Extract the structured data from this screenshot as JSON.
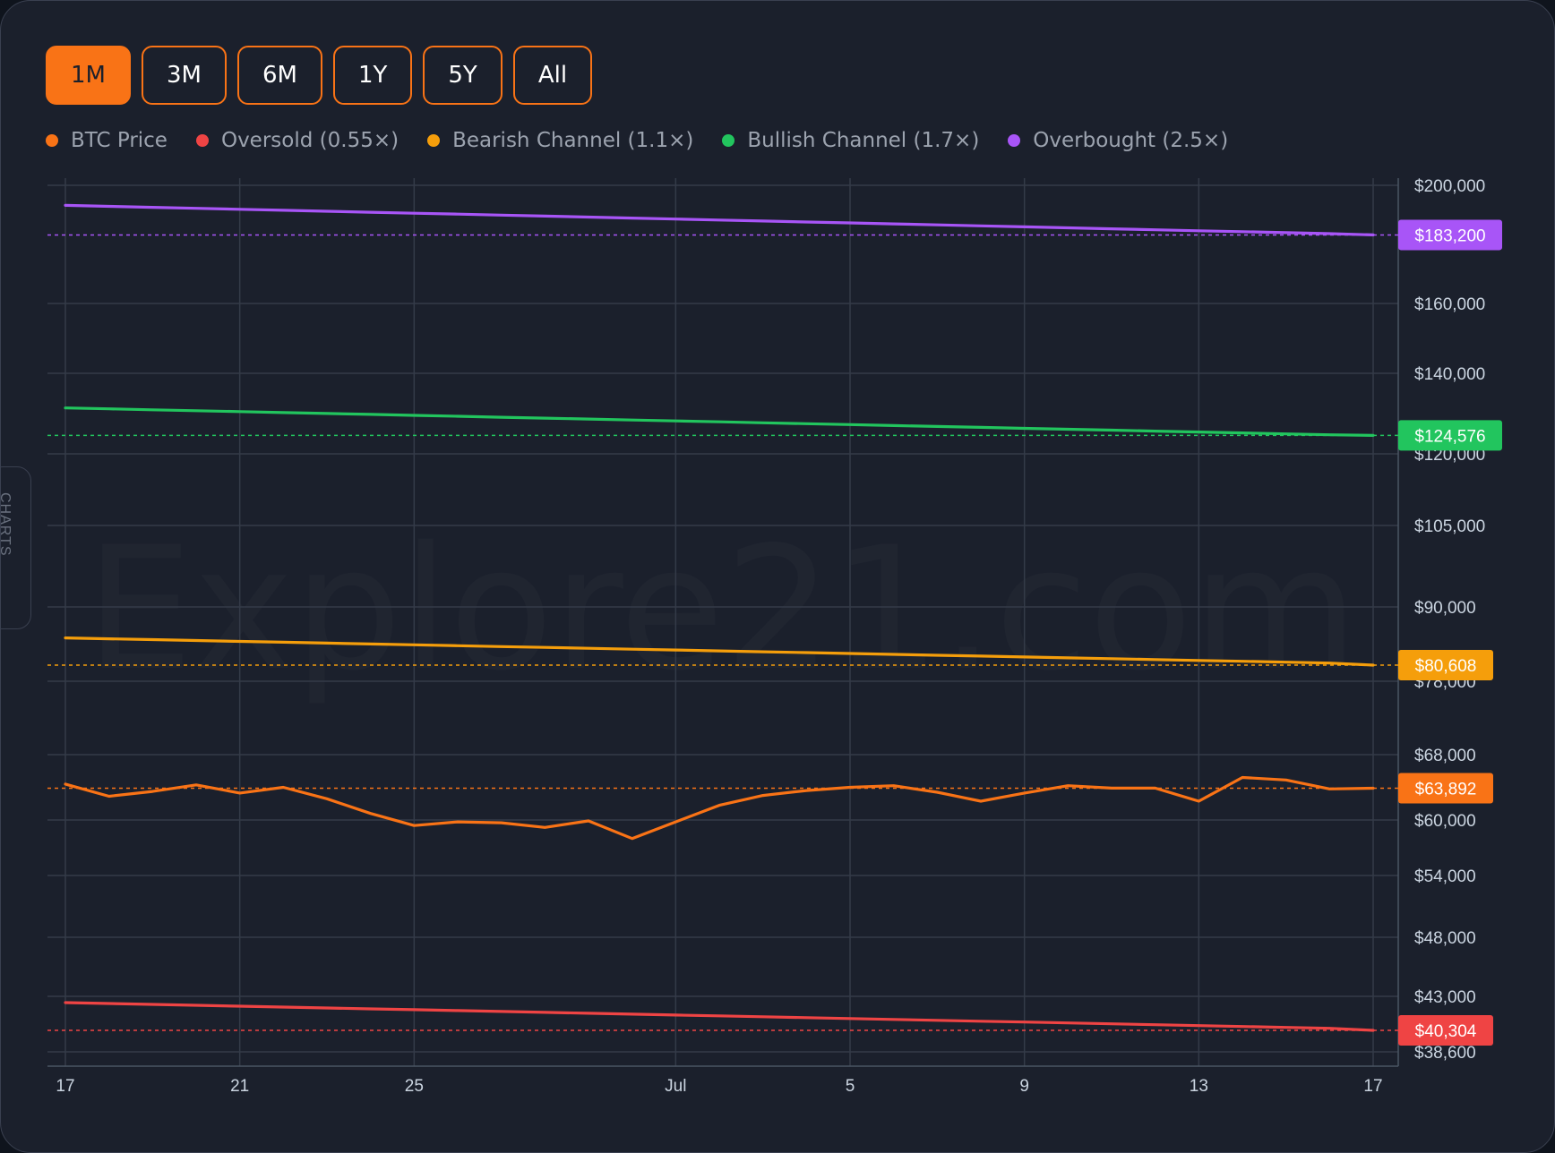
{
  "ranges": [
    {
      "label": "1M",
      "active": true
    },
    {
      "label": "3M",
      "active": false
    },
    {
      "label": "6M",
      "active": false
    },
    {
      "label": "1Y",
      "active": false
    },
    {
      "label": "5Y",
      "active": false
    },
    {
      "label": "All",
      "active": false
    }
  ],
  "side_tab": {
    "label": "CHARTS",
    "icon": "bar-chart-icon"
  },
  "watermark": "Explore21.com",
  "colors": {
    "background": "#1b202c",
    "grid": "#343b48",
    "accent": "#f97316",
    "axis_text": "#cbd5e1"
  },
  "chart_data": {
    "type": "line",
    "title": "",
    "xlabel": "",
    "ylabel": "",
    "y_scale": "log",
    "ylim": [
      38600,
      200000
    ],
    "x_range": [
      "2024-06-17",
      "2024-07-17"
    ],
    "x_ticks": [
      {
        "date": "2024-06-17",
        "label": "17"
      },
      {
        "date": "2024-06-21",
        "label": "21"
      },
      {
        "date": "2024-06-25",
        "label": "25"
      },
      {
        "date": "2024-07-01",
        "label": "Jul"
      },
      {
        "date": "2024-07-05",
        "label": "5"
      },
      {
        "date": "2024-07-09",
        "label": "9"
      },
      {
        "date": "2024-07-13",
        "label": "13"
      },
      {
        "date": "2024-07-17",
        "label": "17"
      }
    ],
    "y_ticks": [
      {
        "value": 200000,
        "label": "$200,000"
      },
      {
        "value": 160000,
        "label": "$160,000"
      },
      {
        "value": 140000,
        "label": "$140,000"
      },
      {
        "value": 120000,
        "label": "$120,000"
      },
      {
        "value": 105000,
        "label": "$105,000"
      },
      {
        "value": 90000,
        "label": "$90,000"
      },
      {
        "value": 78000,
        "label": "$78,000"
      },
      {
        "value": 68000,
        "label": "$68,000"
      },
      {
        "value": 60000,
        "label": "$60,000"
      },
      {
        "value": 54000,
        "label": "$54,000"
      },
      {
        "value": 48000,
        "label": "$48,000"
      },
      {
        "value": 43000,
        "label": "$43,000"
      },
      {
        "value": 38600,
        "label": "$38,600"
      }
    ],
    "legend_position": "top",
    "grid": true,
    "dates": [
      "2024-06-17",
      "2024-06-18",
      "2024-06-19",
      "2024-06-20",
      "2024-06-21",
      "2024-06-22",
      "2024-06-23",
      "2024-06-24",
      "2024-06-25",
      "2024-06-26",
      "2024-06-27",
      "2024-06-28",
      "2024-06-29",
      "2024-06-30",
      "2024-07-01",
      "2024-07-02",
      "2024-07-03",
      "2024-07-04",
      "2024-07-05",
      "2024-07-06",
      "2024-07-07",
      "2024-07-08",
      "2024-07-09",
      "2024-07-10",
      "2024-07-11",
      "2024-07-12",
      "2024-07-13",
      "2024-07-14",
      "2024-07-15",
      "2024-07-16",
      "2024-07-17"
    ],
    "series": [
      {
        "name": "BTC Price",
        "color": "#f97316",
        "values": [
          64400,
          62900,
          63500,
          64300,
          63300,
          64000,
          62600,
          60800,
          59400,
          59800,
          59700,
          59200,
          59900,
          58000,
          59800,
          61800,
          63000,
          63600,
          64000,
          64200,
          63400,
          62300,
          63300,
          64200,
          63900,
          63900,
          62300,
          65200,
          64900,
          63800,
          63892
        ],
        "last_label": "$63,892"
      },
      {
        "name": "Oversold (0.55×)",
        "color": "#ef4444",
        "values": [
          42500,
          42430,
          42360,
          42290,
          42220,
          42150,
          42080,
          42010,
          41940,
          41870,
          41800,
          41730,
          41660,
          41590,
          41520,
          41450,
          41380,
          41310,
          41240,
          41170,
          41100,
          41030,
          40960,
          40890,
          40820,
          40750,
          40680,
          40610,
          40540,
          40470,
          40304
        ],
        "last_label": "$40,304"
      },
      {
        "name": "Bearish Channel (1.1×)",
        "color": "#f59e0b",
        "values": [
          85000,
          84860,
          84720,
          84580,
          84440,
          84300,
          84160,
          84020,
          83880,
          83740,
          83600,
          83460,
          83320,
          83180,
          83040,
          82900,
          82760,
          82620,
          82480,
          82340,
          82200,
          82060,
          81920,
          81780,
          81640,
          81500,
          81360,
          81220,
          81080,
          80940,
          80608
        ],
        "last_label": "$80,608"
      },
      {
        "name": "Bullish Channel (1.7×)",
        "color": "#22c55e",
        "values": [
          131400,
          131170,
          130940,
          130710,
          130480,
          130250,
          130020,
          129790,
          129560,
          129330,
          129100,
          128870,
          128640,
          128410,
          128180,
          127950,
          127720,
          127490,
          127260,
          127030,
          126800,
          126570,
          126340,
          126110,
          125880,
          125650,
          125420,
          125190,
          124960,
          124730,
          124576
        ],
        "last_label": "$124,576"
      },
      {
        "name": "Overbought (2.5×)",
        "color": "#a855f7",
        "values": [
          193200,
          192870,
          192540,
          192210,
          191880,
          191550,
          191220,
          190890,
          190560,
          190230,
          189900,
          189570,
          189240,
          188910,
          188580,
          188250,
          187920,
          187590,
          187260,
          186930,
          186600,
          186270,
          185940,
          185610,
          185280,
          184950,
          184620,
          184290,
          183960,
          183630,
          183200
        ],
        "last_label": "$183,200"
      }
    ]
  }
}
